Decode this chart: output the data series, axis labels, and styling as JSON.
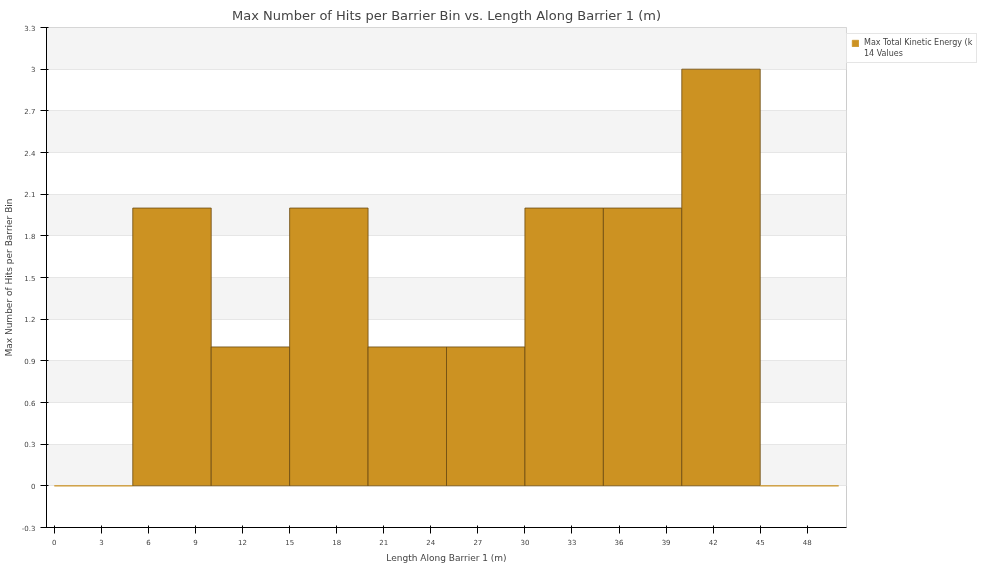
{
  "chart_data": {
    "type": "histogram",
    "title": "Max Number of Hits per Barrier Bin vs. Length Along Barrier 1 (m)",
    "xlabel": "Length Along Barrier 1 (m)",
    "ylabel": "Max Number of Hits per Barrier Bin",
    "bins": [
      0,
      5,
      10,
      15,
      20,
      25,
      30,
      35,
      40,
      45,
      50
    ],
    "series": [
      {
        "name": "Max Total Kinetic Energy (k",
        "color": "#cc9222",
        "values": [
          0,
          2,
          1,
          2,
          1,
          1,
          2,
          2,
          3,
          0
        ]
      }
    ],
    "xlim": [
      -0.5,
      50.5
    ],
    "xticks": [
      0,
      3,
      6,
      9,
      12,
      15,
      18,
      21,
      24,
      27,
      30,
      33,
      36,
      39,
      42,
      45,
      48
    ],
    "ylim": [
      -0.3,
      3.3
    ],
    "yticks": [
      -0.3,
      0,
      0.3,
      0.6,
      0.9,
      1.2,
      1.5,
      1.8,
      2.1,
      2.4,
      2.7,
      3,
      3.3
    ],
    "annotations": [
      "14 Values"
    ],
    "grid": "y",
    "legend": "top right"
  }
}
